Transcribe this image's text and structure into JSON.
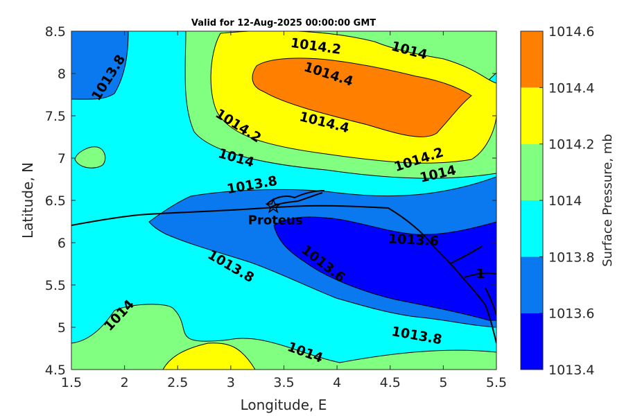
{
  "chart_data": {
    "type": "contour",
    "title": "Valid for 12-Aug-2025 00:00:00 GMT",
    "xlabel": "Longitude, E",
    "ylabel": "Latitude, N",
    "xlim": [
      1.5,
      5.5
    ],
    "ylim": [
      4.5,
      8.5
    ],
    "xticks": [
      "1.5",
      "2",
      "2.5",
      "3",
      "3.5",
      "4",
      "4.5",
      "5",
      "5.5"
    ],
    "yticks": [
      "4.5",
      "5",
      "5.5",
      "6",
      "6.5",
      "7",
      "7.5",
      "8",
      "8.5"
    ],
    "colorbar": {
      "label": "Surface Pressure, mb",
      "levels": [
        {
          "value": "1013.4",
          "color": "#0000ff"
        },
        {
          "value": "1013.6",
          "color": "#0a78ee"
        },
        {
          "value": "1013.8",
          "color": "#00ffff"
        },
        {
          "value": "1014",
          "color": "#80ff80"
        },
        {
          "value": "1014.2",
          "color": "#ffff00"
        },
        {
          "value": "1014.4",
          "color": "#ff8000"
        },
        {
          "value": "1014.6",
          "color": "#ff0000"
        }
      ]
    },
    "station": {
      "name": "Proteus",
      "lon": 3.4,
      "lat": 6.43
    },
    "contour_labels": [
      {
        "text": "1014.2",
        "lon": 3.8,
        "lat": 8.32,
        "angle": 8
      },
      {
        "text": "1014",
        "lon": 4.68,
        "lat": 8.27,
        "angle": 15
      },
      {
        "text": "1014.4",
        "lon": 3.92,
        "lat": 7.99,
        "angle": 18
      },
      {
        "text": "1014.4",
        "lon": 3.88,
        "lat": 7.42,
        "angle": 14
      },
      {
        "text": "1014.2",
        "lon": 3.07,
        "lat": 7.38,
        "angle": 32
      },
      {
        "text": "1014.2",
        "lon": 4.77,
        "lat": 6.98,
        "angle": -18
      },
      {
        "text": "1014",
        "lon": 3.05,
        "lat": 7.0,
        "angle": 16
      },
      {
        "text": "1014",
        "lon": 4.95,
        "lat": 6.81,
        "angle": -13
      },
      {
        "text": "1013.8",
        "lon": 1.85,
        "lat": 7.95,
        "angle": -58
      },
      {
        "text": "1013.8",
        "lon": 3.2,
        "lat": 6.68,
        "angle": -10
      },
      {
        "text": "1013.8",
        "lon": 3.0,
        "lat": 5.72,
        "angle": 30
      },
      {
        "text": "1013.6",
        "lon": 3.87,
        "lat": 5.75,
        "angle": 38
      },
      {
        "text": "1013.6",
        "lon": 4.72,
        "lat": 6.03,
        "angle": 3
      },
      {
        "text": "1014",
        "lon": 1.95,
        "lat": 5.14,
        "angle": -47
      },
      {
        "text": "1014",
        "lon": 3.7,
        "lat": 4.7,
        "angle": 20
      },
      {
        "text": "1013.8",
        "lon": 4.75,
        "lat": 4.9,
        "angle": 10
      },
      {
        "text": "1",
        "lon": 5.35,
        "lat": 5.63,
        "angle": 0
      }
    ]
  }
}
